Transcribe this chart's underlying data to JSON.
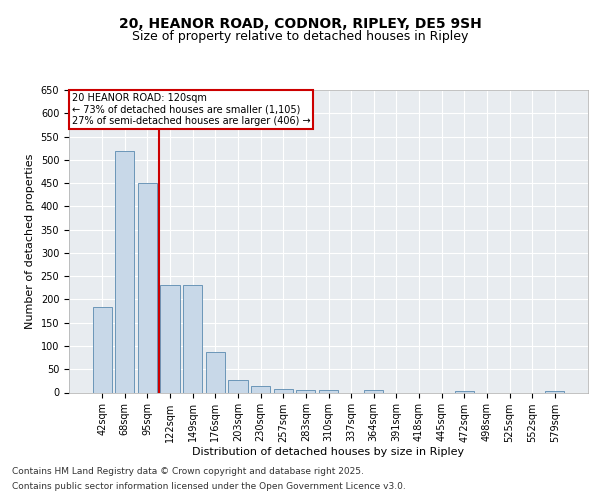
{
  "title1": "20, HEANOR ROAD, CODNOR, RIPLEY, DE5 9SH",
  "title2": "Size of property relative to detached houses in Ripley",
  "xlabel": "Distribution of detached houses by size in Ripley",
  "ylabel": "Number of detached properties",
  "categories": [
    "42sqm",
    "68sqm",
    "95sqm",
    "122sqm",
    "149sqm",
    "176sqm",
    "203sqm",
    "230sqm",
    "257sqm",
    "283sqm",
    "310sqm",
    "337sqm",
    "364sqm",
    "391sqm",
    "418sqm",
    "445sqm",
    "472sqm",
    "498sqm",
    "525sqm",
    "552sqm",
    "579sqm"
  ],
  "values": [
    183,
    520,
    450,
    232,
    232,
    87,
    27,
    14,
    7,
    6,
    5,
    0,
    5,
    0,
    0,
    0,
    4,
    0,
    0,
    0,
    4
  ],
  "bar_color": "#c8d8e8",
  "bar_edge_color": "#5a8ab0",
  "vline_x_index": 2.5,
  "annotation_text": "20 HEANOR ROAD: 120sqm\n← 73% of detached houses are smaller (1,105)\n27% of semi-detached houses are larger (406) →",
  "annotation_box_color": "#ffffff",
  "annotation_box_edge": "#cc0000",
  "vline_color": "#cc0000",
  "bg_color": "#e8ecf0",
  "ylim": [
    0,
    650
  ],
  "yticks": [
    0,
    50,
    100,
    150,
    200,
    250,
    300,
    350,
    400,
    450,
    500,
    550,
    600,
    650
  ],
  "footer_line1": "Contains HM Land Registry data © Crown copyright and database right 2025.",
  "footer_line2": "Contains public sector information licensed under the Open Government Licence v3.0.",
  "title1_fontsize": 10,
  "title2_fontsize": 9,
  "tick_fontsize": 7,
  "label_fontsize": 8,
  "footer_fontsize": 6.5
}
